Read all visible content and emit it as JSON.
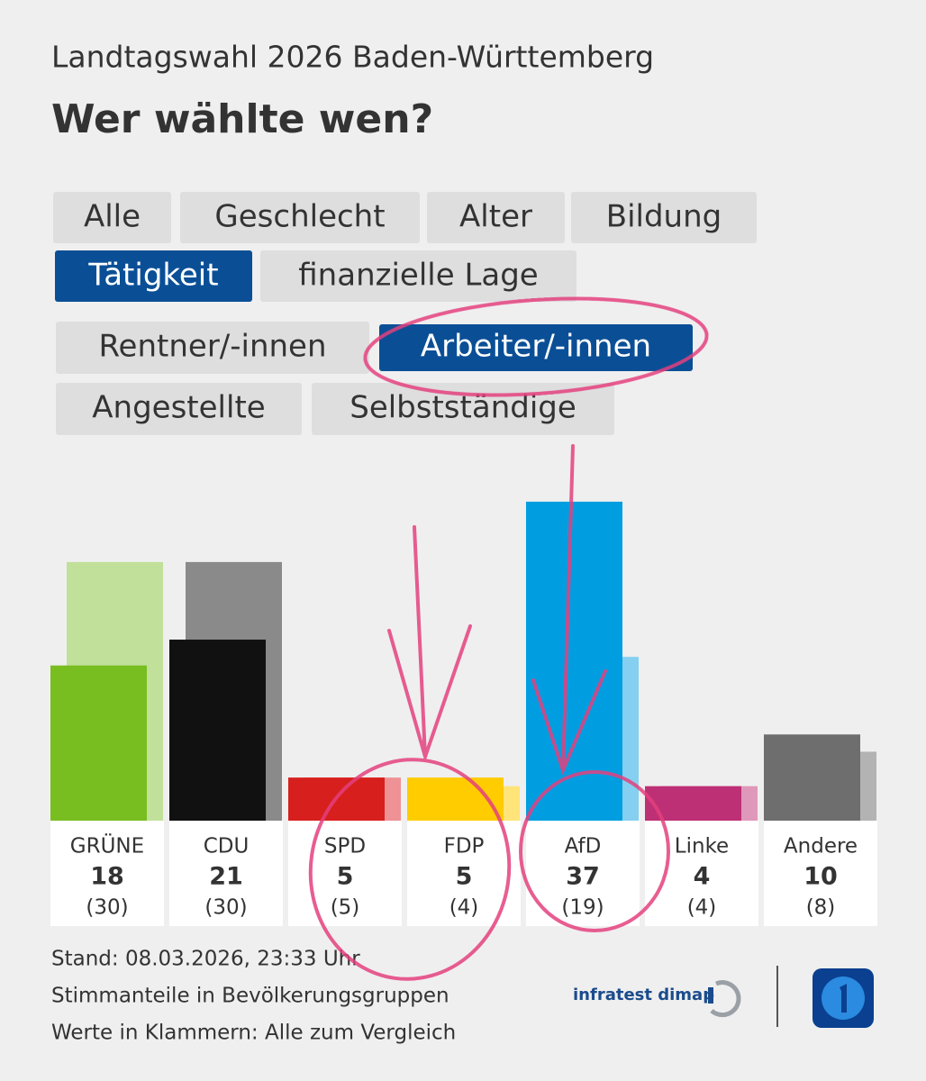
{
  "header": {
    "supertitle": "Landtagswahl 2026 Baden-Württemberg",
    "title": "Wer wählte wen?"
  },
  "tabs": [
    "Alle",
    "Geschlecht",
    "Alter",
    "Bildung",
    "Tätigkeit",
    "finanzielle Lage"
  ],
  "selected_tab": 4,
  "subtabs": [
    "Rentner/-innen",
    "Arbeiter/-innen",
    "Angestellte",
    "Selbstständige"
  ],
  "selected_subtab": 1,
  "chart_data": {
    "type": "bar",
    "categories": [
      "GRÜNE",
      "CDU",
      "SPD",
      "FDP",
      "AfD",
      "Linke",
      "Andere"
    ],
    "series": [
      {
        "values": [
          18,
          21,
          5,
          5,
          37,
          4,
          10
        ],
        "colors": [
          "#78be20",
          "#111111",
          "#d71f1d",
          "#ffcc00",
          "#009ee0",
          "#be3075",
          "#6e6e6e"
        ]
      },
      {
        "values": [
          30,
          30,
          5,
          4,
          19,
          4,
          8
        ],
        "value_labels": [
          "(30)",
          "(30)",
          "(5)",
          "(4)",
          "(19)",
          "(4)",
          "(8)"
        ],
        "colors": [
          "#c1e09a",
          "#8a8a8a",
          "#ee9296",
          "#ffe47a",
          "#85d0f0",
          "#df98ba",
          "#b3b3b3"
        ]
      }
    ]
  },
  "footer": {
    "notes": [
      "Stand: 08.03.2026, 23:33 Uhr",
      "Stimmanteile in Bevölkerungsgruppen",
      "Werte in Klammern: Alle zum Vergleich"
    ],
    "source": "infratest dimap"
  }
}
